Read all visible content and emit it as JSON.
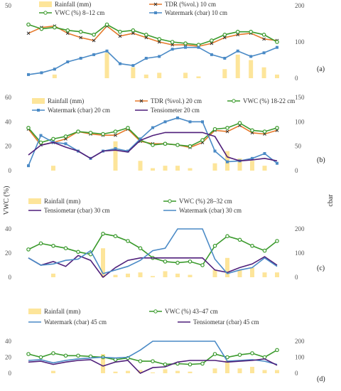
{
  "y_axis_left": "VWC (%)",
  "y_axis_right": "cbar",
  "colors": {
    "rainfall": "#fde59a",
    "tdr": "#e5792b",
    "vwc": "#3a9a2c",
    "watermark": "#4a8ac6",
    "tensiometer": "#4f1f7a"
  },
  "chart_data": [
    {
      "type": "line",
      "panel_label": "(a)",
      "ylim_left": [
        0,
        50
      ],
      "ylim_right": [
        0,
        200
      ],
      "left_ticks": [
        "50"
      ],
      "right_ticks": [
        "200",
        "100",
        "0"
      ],
      "x": [
        1,
        2,
        3,
        4,
        5,
        6,
        7,
        8,
        9,
        10,
        11,
        12,
        13,
        14,
        15,
        16,
        17,
        18,
        19,
        20
      ],
      "series": [
        {
          "name": "Rainfall (mm)",
          "axis": "right",
          "style": "bar",
          "color": "#fde59a",
          "values": [
            0,
            0,
            10,
            0,
            0,
            0,
            70,
            0,
            30,
            10,
            15,
            0,
            15,
            5,
            0,
            25,
            65,
            50,
            30,
            10
          ]
        },
        {
          "name": "TDR (%vol.) 10 cm",
          "axis": "left",
          "style": "line",
          "color": "#e5792b",
          "marker": "x",
          "values": [
            31,
            35,
            36,
            31,
            28,
            26,
            36,
            29,
            31,
            28,
            25,
            23,
            23,
            22,
            24,
            28,
            30,
            31,
            27,
            26
          ]
        },
        {
          "name": "VWC  (%) 8–12 cm",
          "axis": "left",
          "style": "line",
          "color": "#3a9a2c",
          "marker": "circle",
          "values": [
            37,
            34,
            35,
            33,
            32,
            30,
            37,
            32,
            33,
            30,
            27,
            25,
            24,
            23,
            26,
            30,
            32,
            32,
            30,
            25
          ]
        },
        {
          "name": "Watermark (cbar) 10  cm",
          "axis": "right",
          "style": "line",
          "color": "#4a8ac6",
          "marker": "square",
          "values": [
            10,
            15,
            25,
            45,
            55,
            65,
            75,
            40,
            35,
            55,
            60,
            80,
            85,
            85,
            65,
            55,
            75,
            60,
            70,
            85
          ]
        }
      ]
    },
    {
      "type": "line",
      "panel_label": "(b)",
      "ylim_left": [
        0,
        60
      ],
      "ylim_right": [
        0,
        150
      ],
      "left_ticks": [
        "60",
        "40",
        "20",
        "0"
      ],
      "right_ticks": [
        "150",
        "100",
        "50",
        "0"
      ],
      "x": [
        1,
        2,
        3,
        4,
        5,
        6,
        7,
        8,
        9,
        10,
        11,
        12,
        13,
        14,
        15,
        16,
        17,
        18,
        19,
        20,
        21
      ],
      "series": [
        {
          "name": "Rainfall (mm)",
          "axis": "right",
          "style": "bar",
          "color": "#fde59a",
          "values": [
            0,
            0,
            10,
            0,
            0,
            0,
            0,
            60,
            0,
            20,
            5,
            10,
            10,
            5,
            0,
            15,
            40,
            25,
            20,
            10,
            0
          ]
        },
        {
          "name": "TDR (%vol.) 20 cm",
          "axis": "left",
          "style": "line",
          "color": "#e5792b",
          "marker": "x",
          "values": [
            34,
            21,
            23,
            26,
            32,
            30,
            29,
            29,
            34,
            24,
            22,
            22,
            21,
            19,
            23,
            33,
            32,
            37,
            31,
            30,
            33
          ]
        },
        {
          "name": "VWC  (%) 18-22 cm",
          "axis": "left",
          "style": "line",
          "color": "#3a9a2c",
          "marker": "circle",
          "values": [
            35,
            23,
            26,
            28,
            32,
            31,
            30,
            32,
            35,
            25,
            21,
            22,
            21,
            20,
            25,
            34,
            35,
            39,
            33,
            32,
            35
          ]
        },
        {
          "name": "Watermark (cbar) 20 cm",
          "axis": "right",
          "style": "line",
          "color": "#4a8ac6",
          "marker": "square",
          "values": [
            10,
            72,
            58,
            55,
            40,
            25,
            40,
            45,
            40,
            65,
            88,
            100,
            108,
            100,
            100,
            40,
            18,
            20,
            25,
            35,
            15
          ]
        },
        {
          "name": "Tensiometer 20 cm",
          "axis": "right",
          "style": "line",
          "color": "#4f1f7a",
          "marker": "none",
          "values": [
            32,
            52,
            58,
            48,
            40,
            25,
            40,
            42,
            38,
            62,
            72,
            78,
            78,
            78,
            78,
            70,
            28,
            20,
            22,
            25,
            20
          ]
        }
      ]
    },
    {
      "type": "line",
      "panel_label": "(c)",
      "ylim_left": [
        0,
        40
      ],
      "ylim_right": [
        0,
        200
      ],
      "left_ticks": [
        "40",
        "20",
        "0"
      ],
      "right_ticks": [
        "200",
        "100",
        "0"
      ],
      "x": [
        1,
        2,
        3,
        4,
        5,
        6,
        7,
        8,
        9,
        10,
        11,
        12,
        13,
        14,
        15,
        16,
        17,
        18,
        19,
        20,
        21
      ],
      "series": [
        {
          "name": "Rainfall (mm)",
          "axis": "right",
          "style": "bar",
          "color": "#fde59a",
          "values": [
            0,
            0,
            15,
            0,
            0,
            0,
            120,
            10,
            15,
            20,
            5,
            25,
            15,
            10,
            0,
            30,
            80,
            30,
            40,
            20,
            20
          ]
        },
        {
          "name": "VWC  (%) 28–32 cm",
          "axis": "left",
          "style": "line",
          "color": "#3a9a2c",
          "marker": "circle",
          "values": [
            23,
            28,
            26,
            24,
            21,
            19,
            36,
            34,
            30,
            24,
            16,
            13,
            12,
            13,
            10,
            26,
            34,
            31,
            26,
            22,
            30
          ]
        },
        {
          "name": "Tensiometar (cbar) 30 cm",
          "axis": "right",
          "style": "line",
          "color": "#4f1f7a",
          "marker": "none",
          "values": [
            80,
            50,
            65,
            45,
            90,
            70,
            0,
            40,
            70,
            80,
            80,
            80,
            80,
            80,
            80,
            30,
            20,
            40,
            55,
            85,
            50
          ]
        },
        {
          "name": "Watermark (cbar) 30 cm",
          "axis": "right",
          "style": "line",
          "color": "#4a8ac6",
          "marker": "none",
          "values": [
            80,
            50,
            55,
            70,
            75,
            110,
            15,
            30,
            45,
            70,
            110,
            120,
            200,
            200,
            200,
            75,
            15,
            30,
            40,
            80,
            45
          ]
        }
      ]
    },
    {
      "type": "line",
      "panel_label": "(d)",
      "ylim_left": [
        0,
        40
      ],
      "ylim_right": [
        0,
        200
      ],
      "left_ticks": [
        "40",
        "20",
        "0"
      ],
      "right_ticks": [
        "200",
        "100",
        "0"
      ],
      "x": [
        1,
        2,
        3,
        4,
        5,
        6,
        7,
        8,
        9,
        10,
        11,
        12,
        13,
        14,
        15,
        16,
        17,
        18,
        19,
        20,
        21
      ],
      "series": [
        {
          "name": "Rainfall (mm)",
          "axis": "right",
          "style": "bar",
          "color": "#fde59a",
          "values": [
            0,
            0,
            15,
            0,
            0,
            0,
            120,
            10,
            15,
            20,
            5,
            25,
            15,
            10,
            0,
            30,
            80,
            30,
            40,
            20,
            20
          ]
        },
        {
          "name": "VWC  (%) 43–47 cm",
          "axis": "left",
          "style": "line",
          "color": "#3a9a2c",
          "marker": "circle",
          "values": [
            24,
            20,
            25,
            22,
            22,
            21,
            20,
            17,
            19,
            15,
            15,
            11,
            12,
            11,
            12,
            24,
            20,
            23,
            25,
            20,
            29
          ]
        },
        {
          "name": "Watermark (cbar) 45 cm",
          "axis": "right",
          "style": "line",
          "color": "#4a8ac6",
          "marker": "none",
          "values": [
            80,
            85,
            65,
            80,
            90,
            95,
            100,
            95,
            100,
            145,
            200,
            200,
            200,
            200,
            200,
            200,
            75,
            80,
            85,
            75,
            55
          ]
        },
        {
          "name": "Tensiometar (cbar) 45 cm",
          "axis": "right",
          "style": "line",
          "color": "#4f1f7a",
          "marker": "none",
          "values": [
            70,
            75,
            55,
            70,
            80,
            85,
            45,
            70,
            80,
            0,
            35,
            40,
            70,
            80,
            80,
            80,
            70,
            75,
            80,
            90,
            50
          ]
        }
      ]
    }
  ]
}
